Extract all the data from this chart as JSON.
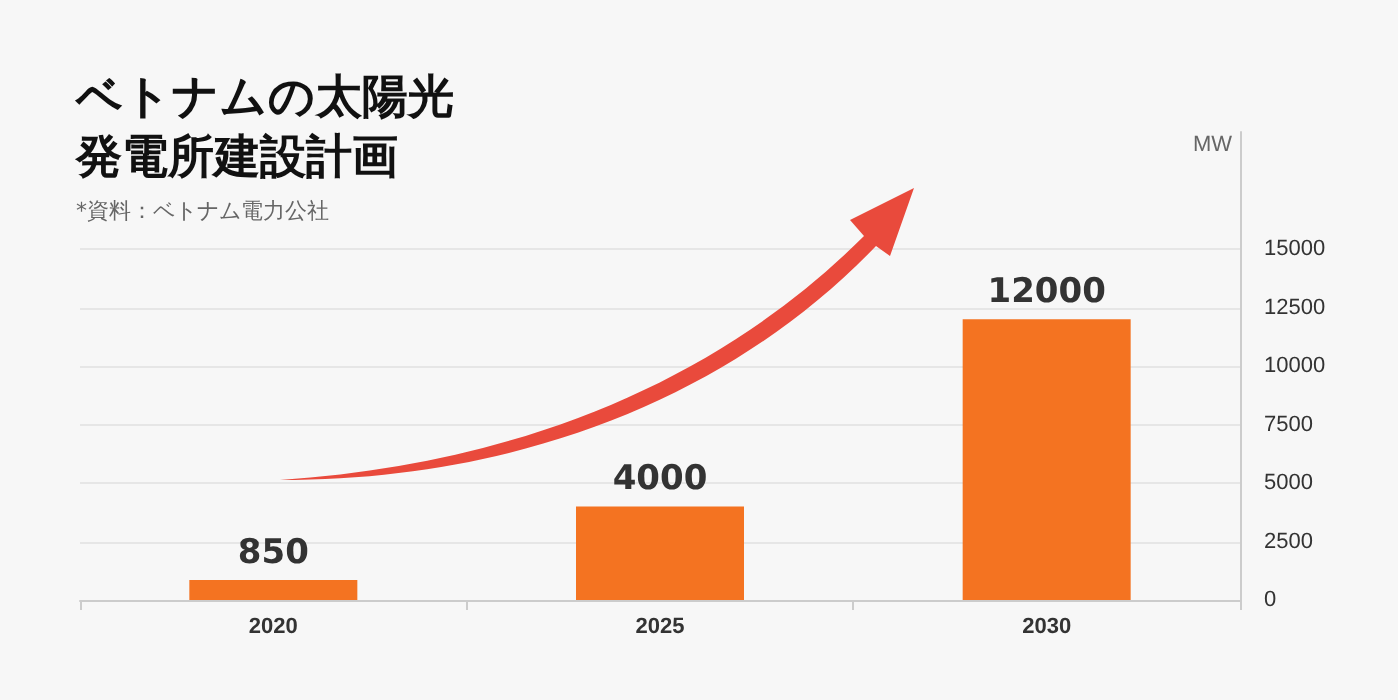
{
  "chart_data": {
    "type": "bar",
    "title": "ベトナムの太陽光発電所建設計画",
    "annotations": [
      "*資料：ベトナム電力公社"
    ],
    "ylabel": "MW",
    "categories": [
      "2020",
      "2025",
      "2030"
    ],
    "values": [
      850,
      4000,
      12000
    ],
    "color": "#f47321",
    "ylim": [
      0,
      20000
    ],
    "yticks": [
      0,
      2500,
      5000,
      7500,
      10000,
      12500,
      15000
    ],
    "grid": "y",
    "data_labels": true
  }
}
